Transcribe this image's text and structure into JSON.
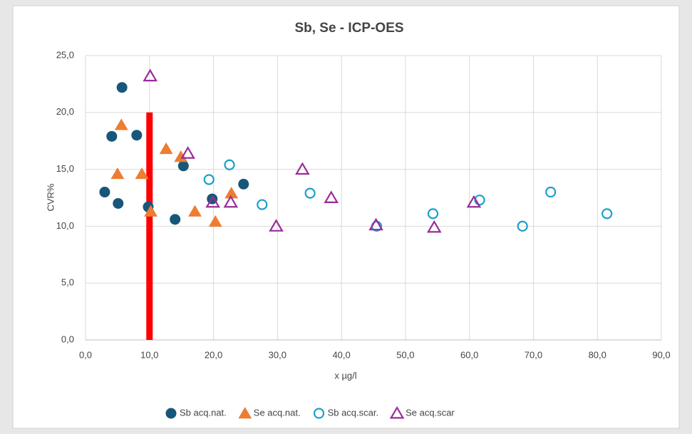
{
  "chart_data": {
    "type": "scatter",
    "title": "Sb, Se - ICP-OES",
    "x_label": "x µg/l",
    "y_label": "CVR%",
    "xlim": [
      0,
      90
    ],
    "xticks": [
      {
        "value": 0,
        "label": "0,0"
      },
      {
        "value": 10,
        "label": "10,0"
      },
      {
        "value": 20,
        "label": "20,0"
      },
      {
        "value": 30,
        "label": "30,0"
      },
      {
        "value": 40,
        "label": "40,0"
      },
      {
        "value": 50,
        "label": "50,0"
      },
      {
        "value": 60,
        "label": "60,0"
      },
      {
        "value": 70,
        "label": "70,0"
      },
      {
        "value": 80,
        "label": "80,0"
      },
      {
        "value": 90,
        "label": "90,0"
      }
    ],
    "ylim": [
      0,
      25
    ],
    "yticks": [
      {
        "value": 0,
        "label": "0,0"
      },
      {
        "value": 5,
        "label": "5,0"
      },
      {
        "value": 10,
        "label": "10,0"
      },
      {
        "value": 15,
        "label": "15,0"
      },
      {
        "value": 20,
        "label": "20,0"
      },
      {
        "value": 25,
        "label": "25,0"
      }
    ],
    "grid": true,
    "legend": "bottom",
    "vline": {
      "x": 10,
      "y": [
        0,
        20
      ],
      "color": "#ff0000"
    },
    "series": [
      {
        "name": "Sb acq.nat.",
        "color": "#17577a",
        "marker": "circle",
        "filled": true,
        "x": [
          3.0,
          5.7,
          4.1,
          8.0,
          5.1,
          9.8,
          14.0,
          15.3,
          19.8,
          24.7
        ],
        "values": [
          13.0,
          22.2,
          17.9,
          18.0,
          12.0,
          11.7,
          10.6,
          15.3,
          12.4,
          13.7
        ]
      },
      {
        "name": "Se acq.nat.",
        "color": "#ed7d31",
        "marker": "triangle",
        "filled": true,
        "x": [
          5.6,
          5.0,
          8.8,
          10.2,
          12.6,
          14.9,
          17.1,
          20.3,
          22.8
        ],
        "values": [
          18.9,
          14.6,
          14.6,
          11.3,
          16.8,
          16.1,
          11.3,
          10.4,
          12.9
        ]
      },
      {
        "name": "Sb acq.scar.",
        "color": "#1aa0cc",
        "marker": "circle",
        "filled": false,
        "x": [
          19.3,
          22.5,
          27.6,
          35.1,
          45.5,
          54.3,
          61.6,
          68.3,
          72.7,
          81.5
        ],
        "values": [
          14.1,
          15.4,
          11.9,
          12.9,
          10.0,
          11.1,
          12.3,
          10.0,
          13.0,
          11.1
        ]
      },
      {
        "name": "Se acq.scar",
        "color": "#9a2c98",
        "marker": "triangle",
        "filled": false,
        "x": [
          10.1,
          16.0,
          19.9,
          22.7,
          29.8,
          33.9,
          38.4,
          45.4,
          54.5,
          60.7
        ],
        "values": [
          23.2,
          16.4,
          12.1,
          12.1,
          10.0,
          15.0,
          12.5,
          10.1,
          9.9,
          12.1
        ]
      }
    ]
  }
}
